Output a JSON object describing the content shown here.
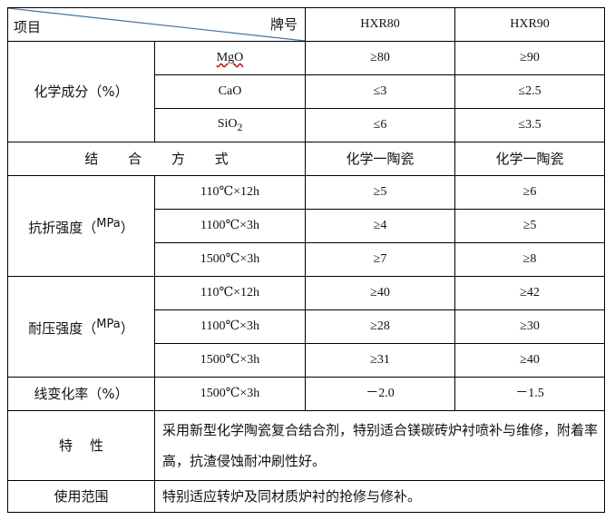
{
  "header": {
    "item_label": "项目",
    "brand_label": "牌号",
    "col1": "HXR80",
    "col2": "HXR90"
  },
  "chemical": {
    "label": "化学成分（%）",
    "rows": [
      {
        "name": "MgO",
        "v1": "≥80",
        "v2": "≥90"
      },
      {
        "name": "CaO",
        "v1": "≤3",
        "v2": "≤2.5"
      },
      {
        "name": "SiO",
        "sub": "2",
        "v1": "≤6",
        "v2": "≤3.5"
      }
    ]
  },
  "bonding": {
    "label": "结 合 方 式",
    "v1": "化学一陶瓷",
    "v2": "化学一陶瓷"
  },
  "flexural": {
    "label": "抗折强度（",
    "unit": "MPa",
    "close": "）",
    "rows": [
      {
        "cond": "110℃×12h",
        "v1": "≥5",
        "v2": "≥6"
      },
      {
        "cond": "1100℃×3h",
        "v1": "≥4",
        "v2": "≥5"
      },
      {
        "cond": "1500℃×3h",
        "v1": "≥7",
        "v2": "≥8"
      }
    ]
  },
  "compressive": {
    "label": "耐压强度（",
    "unit": "MPa",
    "close": "）",
    "rows": [
      {
        "cond": "110℃×12h",
        "v1": "≥40",
        "v2": "≥42"
      },
      {
        "cond": "1100℃×3h",
        "v1": "≥28",
        "v2": "≥30"
      },
      {
        "cond": "1500℃×3h",
        "v1": "≥31",
        "v2": "≥40"
      }
    ]
  },
  "linear": {
    "label": "线变化率（%）",
    "cond": "1500℃×3h",
    "v1": "－2.0",
    "v2": "－1.5"
  },
  "properties": {
    "label": "特    性",
    "text": "采用新型化学陶瓷复合结合剂，特别适合镁碳砖炉衬喷补与维修，附着率高，抗渣侵蚀耐冲刷性好。"
  },
  "usage": {
    "label": "使用范围",
    "text": "特别适应转炉及同材质炉衬的抢修与修补。"
  }
}
